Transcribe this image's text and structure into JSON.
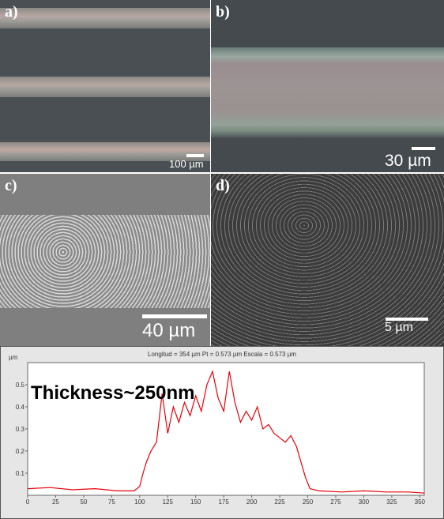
{
  "panels": {
    "a": {
      "label": "a)",
      "scale": "100 µm"
    },
    "b": {
      "label": "b)",
      "scale": "30 µm"
    },
    "c": {
      "label": "c)",
      "scale": "40 µm"
    },
    "d": {
      "label": "d)",
      "scale": "5 µm"
    }
  },
  "chart_data": {
    "type": "line",
    "title": "Longitud = 354 µm  Pt = 0.573 µm  Escala = 0.573 µm",
    "annotation": "Thickness~250nm",
    "ylabel": "µm",
    "xlim": [
      0,
      354
    ],
    "ylim": [
      0,
      0.6
    ],
    "xticks": [
      0,
      25,
      50,
      75,
      100,
      125,
      150,
      175,
      200,
      225,
      250,
      275,
      300,
      325,
      350
    ],
    "yticks": [
      0.1,
      0.2,
      0.3,
      0.4,
      0.5
    ],
    "color": "#e8000a",
    "series": [
      {
        "x": [
          0,
          20,
          40,
          60,
          80,
          95,
          100,
          103,
          106,
          110,
          115,
          120,
          125,
          130,
          135,
          140,
          145,
          150,
          155,
          160,
          165,
          170,
          175,
          180,
          185,
          190,
          195,
          200,
          205,
          210,
          215,
          220,
          225,
          230,
          235,
          240,
          244,
          248,
          252,
          260,
          280,
          300,
          320,
          340,
          354
        ],
        "y": [
          0.03,
          0.035,
          0.025,
          0.03,
          0.02,
          0.02,
          0.04,
          0.1,
          0.15,
          0.2,
          0.24,
          0.46,
          0.28,
          0.4,
          0.33,
          0.42,
          0.36,
          0.45,
          0.38,
          0.5,
          0.56,
          0.44,
          0.38,
          0.56,
          0.42,
          0.33,
          0.38,
          0.34,
          0.4,
          0.3,
          0.32,
          0.28,
          0.26,
          0.24,
          0.27,
          0.22,
          0.15,
          0.08,
          0.03,
          0.02,
          0.015,
          0.02,
          0.015,
          0.015,
          0.01
        ]
      }
    ]
  },
  "colors": {
    "profile": "#e8000a",
    "chart_bg": "#e6e6e6",
    "plot_bg": "#ffffff"
  }
}
